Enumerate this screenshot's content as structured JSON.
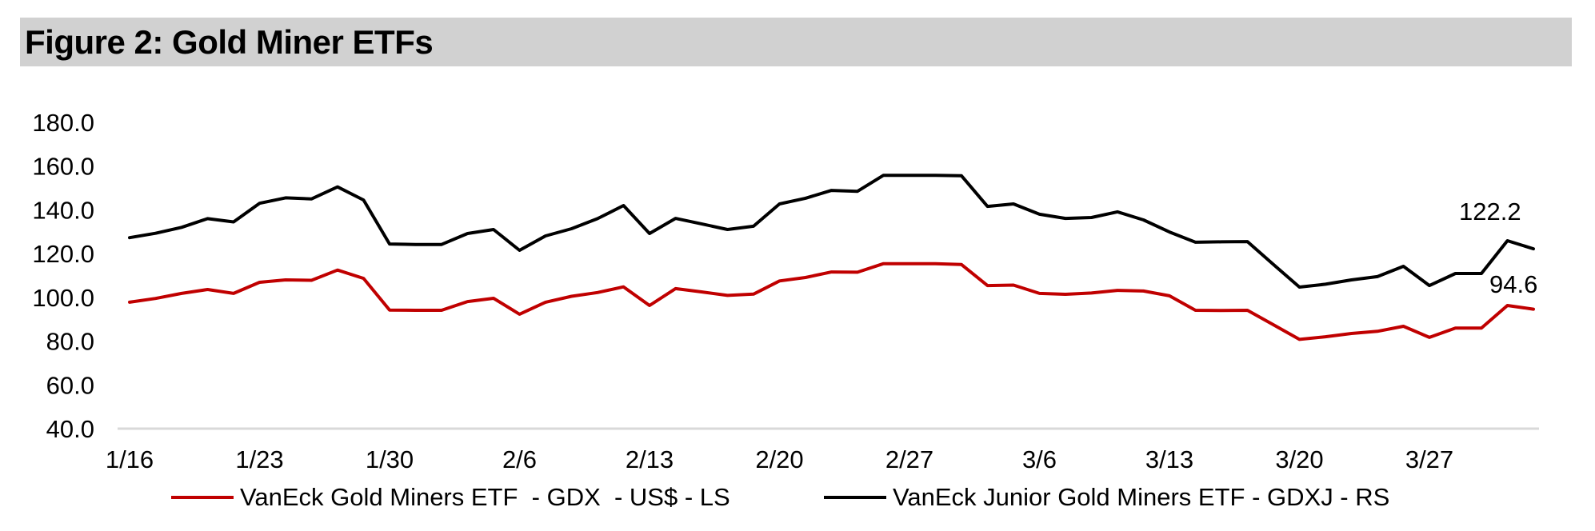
{
  "header": {
    "title": "Figure 2: Gold Miner ETFs"
  },
  "chart_data": {
    "type": "line",
    "title": "Figure 2: Gold Miner ETFs",
    "xlabel": "",
    "ylabel": "",
    "ylim": [
      40,
      180
    ],
    "ytick_step": 20,
    "ytick_labels": [
      "180.0",
      "160.0",
      "140.0",
      "120.0",
      "100.0",
      "80.0",
      "60.0",
      "40.0"
    ],
    "grid": "off",
    "legend_position": "bottom",
    "x": [
      "1/16",
      "1/19",
      "1/20",
      "1/21",
      "1/22",
      "1/23",
      "1/26",
      "1/27",
      "1/28",
      "1/29",
      "1/30",
      "2/2",
      "2/3",
      "2/4",
      "2/5",
      "2/6",
      "2/9",
      "2/10",
      "2/11",
      "2/12",
      "2/13",
      "2/16",
      "2/17",
      "2/18",
      "2/19",
      "2/20",
      "2/23",
      "2/24",
      "2/25",
      "2/26",
      "2/27",
      "3/2",
      "3/3",
      "3/4",
      "3/5",
      "3/6",
      "3/9",
      "3/10",
      "3/11",
      "3/12",
      "3/13",
      "3/16",
      "3/17",
      "3/18",
      "3/19",
      "3/20",
      "3/23",
      "3/24",
      "3/25",
      "3/26",
      "3/27",
      "3/30",
      "3/31",
      "4/1",
      "4/2"
    ],
    "x_tick_indices": [
      0,
      5,
      10,
      15,
      20,
      25,
      30,
      35,
      40,
      45,
      50
    ],
    "x_tick_labels": [
      "1/16",
      "1/23",
      "1/30",
      "2/6",
      "2/13",
      "2/20",
      "2/27",
      "3/6",
      "3/13",
      "3/20",
      "3/27"
    ],
    "series": [
      {
        "name": "VanEck Gold Miners ETF  - GDX  - US$ - LS",
        "color": "#c00000",
        "axis": "LS",
        "end_label": "94.6",
        "values": [
          97.8,
          99.5,
          101.8,
          103.6,
          101.8,
          106.9,
          108.0,
          107.8,
          112.5,
          108.7,
          94.2,
          94.1,
          94.1,
          98.1,
          99.6,
          92.3,
          97.8,
          100.5,
          102.2,
          104.8,
          96.3,
          104.0,
          102.5,
          100.9,
          101.5,
          107.5,
          109.1,
          111.6,
          111.5,
          115.4,
          115.4,
          115.4,
          115.0,
          105.4,
          105.6,
          101.8,
          101.4,
          102.0,
          103.2,
          102.9,
          100.7,
          94.1,
          94.0,
          94.1,
          87.5,
          80.8,
          82.0,
          83.5,
          84.5,
          86.8,
          81.7,
          86.0,
          86.0,
          96.3,
          94.6
        ]
      },
      {
        "name": "VanEck Junior Gold Miners ETF - GDXJ - RS",
        "color": "#000000",
        "axis": "RS",
        "end_label": "122.2",
        "values": [
          127.3,
          129.3,
          132.0,
          136.0,
          134.5,
          143.0,
          145.5,
          145.0,
          150.5,
          144.5,
          124.4,
          124.2,
          124.2,
          129.2,
          131.0,
          121.5,
          128.1,
          131.4,
          136.0,
          142.0,
          129.2,
          136.1,
          133.6,
          131.0,
          132.5,
          142.7,
          145.3,
          148.9,
          148.5,
          155.8,
          155.8,
          155.8,
          155.6,
          141.6,
          142.7,
          138.0,
          136.1,
          136.5,
          139.1,
          135.4,
          129.9,
          125.2,
          125.4,
          125.5,
          115.0,
          104.7,
          106.0,
          108.0,
          109.5,
          114.2,
          105.4,
          110.9,
          110.9,
          125.9,
          122.2
        ]
      }
    ],
    "axis_line_color": "#d9d9d9",
    "title_bar_color": "#d1d1d1"
  }
}
